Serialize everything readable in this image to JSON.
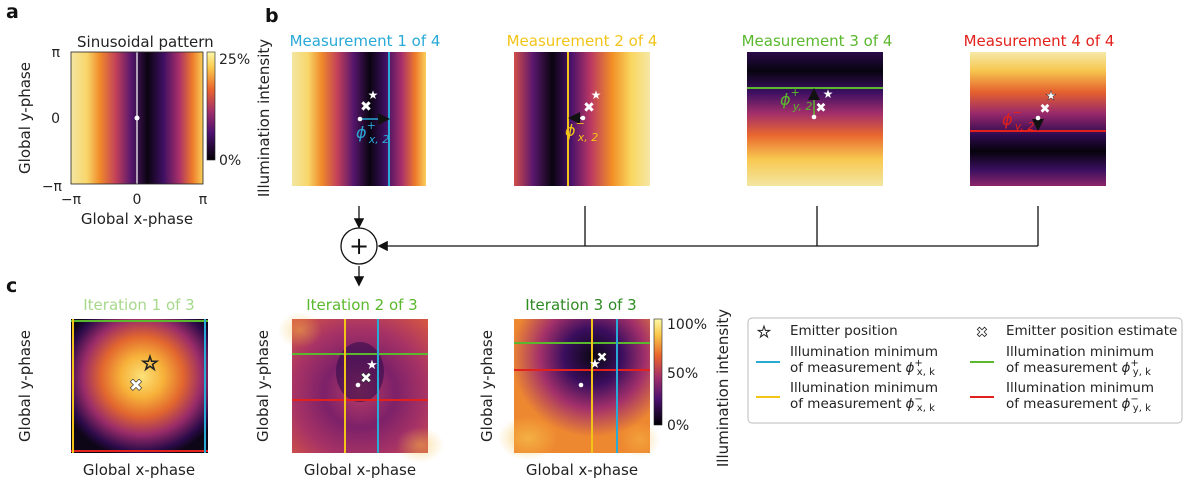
{
  "panel_letters": {
    "a": "a",
    "b": "b",
    "c": "c"
  },
  "panel_a": {
    "title": "Sinusoidal pattern",
    "ylabel": "Global y-phase",
    "xlabel": "Global x-phase",
    "y_ticks": [
      "π",
      "0",
      "−π"
    ],
    "x_ticks": [
      "−π",
      "0",
      "π"
    ],
    "colorbar_ticks": [
      "25%",
      "0%"
    ]
  },
  "panel_b": {
    "ylabel": "Illumination intensity",
    "measurements": [
      {
        "title": "Measurement 1 of 4",
        "color": "#29a9d6",
        "phase_main": "ϕ",
        "phase_sup": "+",
        "phase_sub": "x, 2"
      },
      {
        "title": "Measurement 2 of 4",
        "color": "#f2c418",
        "phase_main": "ϕ",
        "phase_sup": "−",
        "phase_sub": "x, 2"
      },
      {
        "title": "Measurement 3 of 4",
        "color": "#5bb82e",
        "phase_main": "ϕ",
        "phase_sup": "+",
        "phase_sub": "y, 2"
      },
      {
        "title": "Measurement 4 of 4",
        "color": "#e3211c",
        "phase_main": "ϕ",
        "phase_sup": "−",
        "phase_sub": "y, 2"
      }
    ],
    "sum_symbol": "+"
  },
  "panel_c": {
    "iterations": [
      {
        "title": "Iteration 1 of 3",
        "color": "#a6d98a"
      },
      {
        "title": "Iteration 2 of 3",
        "color": "#5bb82e"
      },
      {
        "title": "Iteration 3 of 3",
        "color": "#2e8b22"
      }
    ],
    "ylabel": "Global y-phase",
    "xlabel": "Global x-phase",
    "colorbar_ticks": [
      "100%",
      "50%",
      "0%"
    ],
    "colorbar_label": "Illumination intensity"
  },
  "legend": {
    "emitter": "Emitter position",
    "estimate": "Emitter position estimate",
    "min_line1": "Illumination minimum",
    "min_line2": "of measurement",
    "phi": "ϕ",
    "entries": [
      {
        "sup": "+",
        "sub": "x, k",
        "color": "#29a9d6"
      },
      {
        "sup": "+",
        "sub": "y, k",
        "color": "#5bb82e"
      },
      {
        "sup": "−",
        "sub": "x, k",
        "color": "#f2c418"
      },
      {
        "sup": "−",
        "sub": "y, k",
        "color": "#e3211c"
      }
    ]
  },
  "colors": {
    "blue": "#29a9d6",
    "yellow": "#f2c418",
    "green": "#5bb82e",
    "red": "#e3211c"
  }
}
